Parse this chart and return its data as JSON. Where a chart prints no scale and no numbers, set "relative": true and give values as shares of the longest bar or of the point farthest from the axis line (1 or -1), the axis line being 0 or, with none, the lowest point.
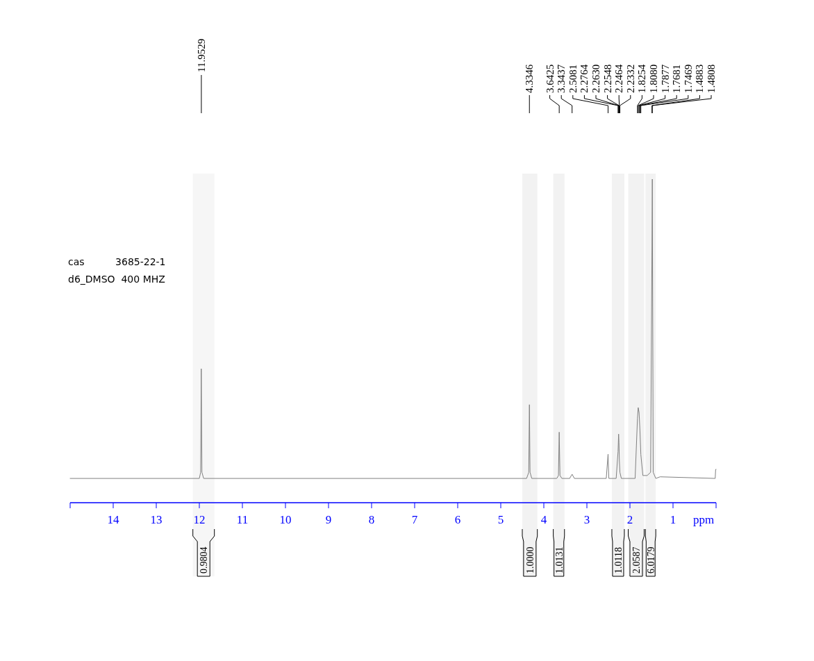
{
  "chart_data": {
    "type": "line",
    "relative": true,
    "xlabel": "ppm",
    "xlim": [
      15,
      0
    ],
    "xticks": [
      14,
      13,
      12,
      11,
      10,
      9,
      8,
      7,
      6,
      5,
      4,
      3,
      2,
      1
    ],
    "grid": false,
    "line_style": "solid",
    "series": [
      {
        "color": "#808080",
        "x": [
          15,
          12.0,
          11.97,
          11.955,
          11.94,
          11.9,
          4.4,
          4.35,
          4.3346,
          4.32,
          4.28,
          3.7,
          3.66,
          3.6425,
          3.625,
          3.58,
          3.4,
          3.3437,
          3.29,
          2.55,
          2.5081,
          2.49,
          2.32,
          2.2764,
          2.263,
          2.2548,
          2.2464,
          2.2332,
          2.2,
          1.88,
          1.8254,
          1.808,
          1.7877,
          1.7681,
          1.7469,
          1.7,
          1.6,
          1.52,
          1.4883,
          1.4808,
          1.46,
          1.4,
          1.3,
          0.02,
          0.01,
          0
        ],
        "values": [
          0.075,
          0.075,
          0.094,
          0.414,
          0.094,
          0.075,
          0.075,
          0.094,
          0.303,
          0.094,
          0.075,
          0.075,
          0.084,
          0.218,
          0.084,
          0.075,
          0.075,
          0.088,
          0.075,
          0.075,
          0.15,
          0.075,
          0.075,
          0.158,
          0.212,
          0.186,
          0.131,
          0.094,
          0.075,
          0.075,
          0.26,
          0.294,
          0.279,
          0.223,
          0.149,
          0.084,
          0.084,
          0.094,
          0.792,
          1.0,
          0.094,
          0.075,
          0.08,
          0.075,
          0.103,
          0.103
        ]
      }
    ],
    "bands": [
      {
        "axis": "x",
        "from": 12.15,
        "to": 11.65,
        "label": "0.9804",
        "color": "#f6f6f6"
      },
      {
        "axis": "x",
        "from": 4.5,
        "to": 4.15,
        "label": "1.0000",
        "color": "#f2f2f2"
      },
      {
        "axis": "x",
        "from": 3.78,
        "to": 3.52,
        "label": "1.0131",
        "color": "#f2f2f2"
      },
      {
        "axis": "x",
        "from": 2.42,
        "to": 2.13,
        "label": "1.0118",
        "color": "#f2f2f2"
      },
      {
        "axis": "x",
        "from": 2.04,
        "to": 1.67,
        "label": "2.0587",
        "color": "#f2f2f2"
      },
      {
        "axis": "x",
        "from": 1.64,
        "to": 1.4,
        "label": "6.0179",
        "color": "#f2f2f2"
      }
    ],
    "annotations": [
      "cas          3685-22-1",
      "d6_DMSO  400 MHZ",
      "11.9529",
      "4.3346",
      "3.6425",
      "3.3437",
      "2.5081",
      "2.2764",
      "2.2630",
      "2.2548",
      "2.2464",
      "2.2332",
      "1.8254",
      "1.8080",
      "1.7877",
      "1.7681",
      "1.7469",
      "1.4883",
      "1.4808"
    ]
  }
}
